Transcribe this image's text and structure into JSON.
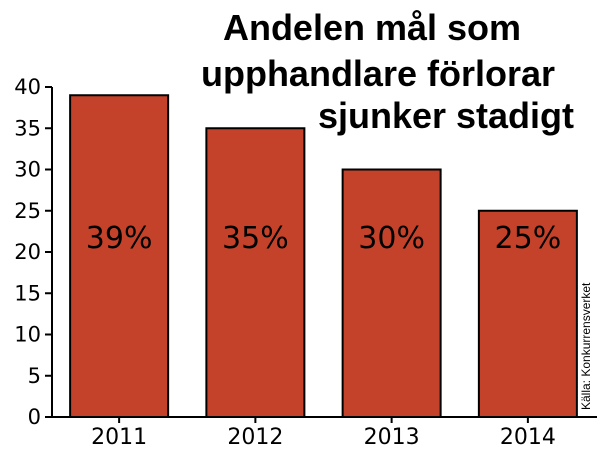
{
  "chart_data": {
    "type": "bar",
    "title_lines": [
      "Andelen mål som",
      "upphandlare förlorar",
      "sjunker stadigt"
    ],
    "categories": [
      "2011",
      "2012",
      "2013",
      "2014"
    ],
    "values": [
      39,
      35,
      30,
      25
    ],
    "data_labels": [
      "39%",
      "35%",
      "30%",
      "25%"
    ],
    "yticks": [
      "0",
      "5",
      "10",
      "15",
      "20",
      "25",
      "30",
      "35",
      "40"
    ],
    "ylim": [
      0,
      40
    ],
    "xlabel": "",
    "ylabel": "",
    "grid": false,
    "source": "Källa: Konkurrensverket",
    "bar_color": "#C5422A",
    "axis_color": "#000000"
  }
}
